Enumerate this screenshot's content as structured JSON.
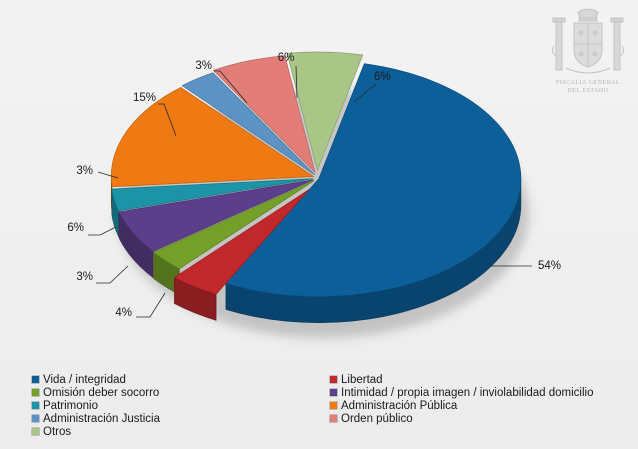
{
  "chart_data": {
    "type": "pie",
    "style": "3d-exploded",
    "series": [
      {
        "name": "Vida / integridad",
        "value": 54,
        "label": "54%",
        "color": "#0c5f99"
      },
      {
        "name": "Libertad",
        "value": 4,
        "label": "4%",
        "color": "#c0282c"
      },
      {
        "name": "Omisión deber socorro",
        "value": 3,
        "label": "3%",
        "color": "#74a02a"
      },
      {
        "name": "Intimidad / propia imagen / inviolabilidad domicilio",
        "value": 6,
        "label": "6%",
        "color": "#5b3f8a"
      },
      {
        "name": "Patrimonio",
        "value": 3,
        "label": "3%",
        "color": "#1d93a8"
      },
      {
        "name": "Administración Pública",
        "value": 15,
        "label": "15%",
        "color": "#ef7a14"
      },
      {
        "name": "Administración Justicia",
        "value": 3,
        "label": "3%",
        "color": "#5c93c4"
      },
      {
        "name": "Orden público",
        "value": 6,
        "label": "6%",
        "color": "#e37d78"
      },
      {
        "name": "Otros",
        "value": 6,
        "label": "6%",
        "color": "#a9c687"
      }
    ],
    "legend_position": "bottom"
  },
  "emblem": {
    "line1": "FISCALIA GENERAL",
    "line2": "DEL ESTADO"
  }
}
